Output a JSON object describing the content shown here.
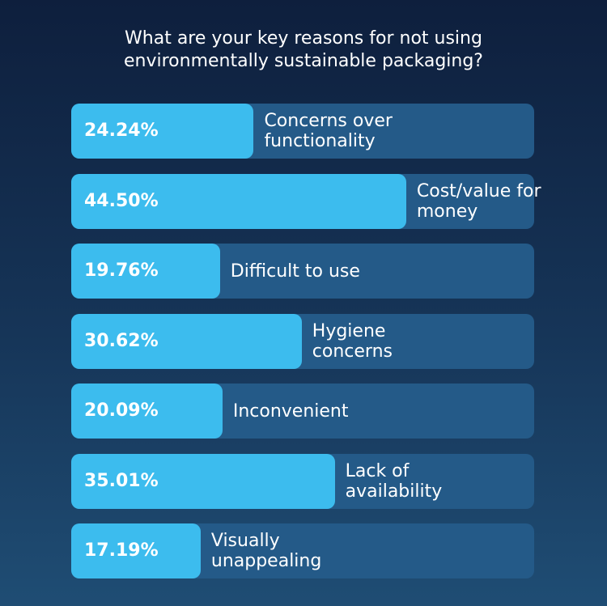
{
  "chart_data": {
    "type": "bar",
    "orientation": "horizontal",
    "title": "What are your key reasons for not using environmentally sustainable packaging?",
    "categories": [
      "Concerns over functionality",
      "Cost/value for money",
      "Difficult to use",
      "Hygiene concerns",
      "Inconvenient",
      "Lack of availability",
      "Visually unappealing"
    ],
    "values": [
      24.24,
      44.5,
      19.76,
      30.62,
      20.09,
      35.01,
      17.19
    ],
    "value_labels": [
      "24.24%",
      "44.50%",
      "19.76%",
      "30.62%",
      "20.09%",
      "35.01%",
      "17.19%"
    ],
    "color": "#3cbcee",
    "xlim": [
      0,
      61.5
    ]
  }
}
